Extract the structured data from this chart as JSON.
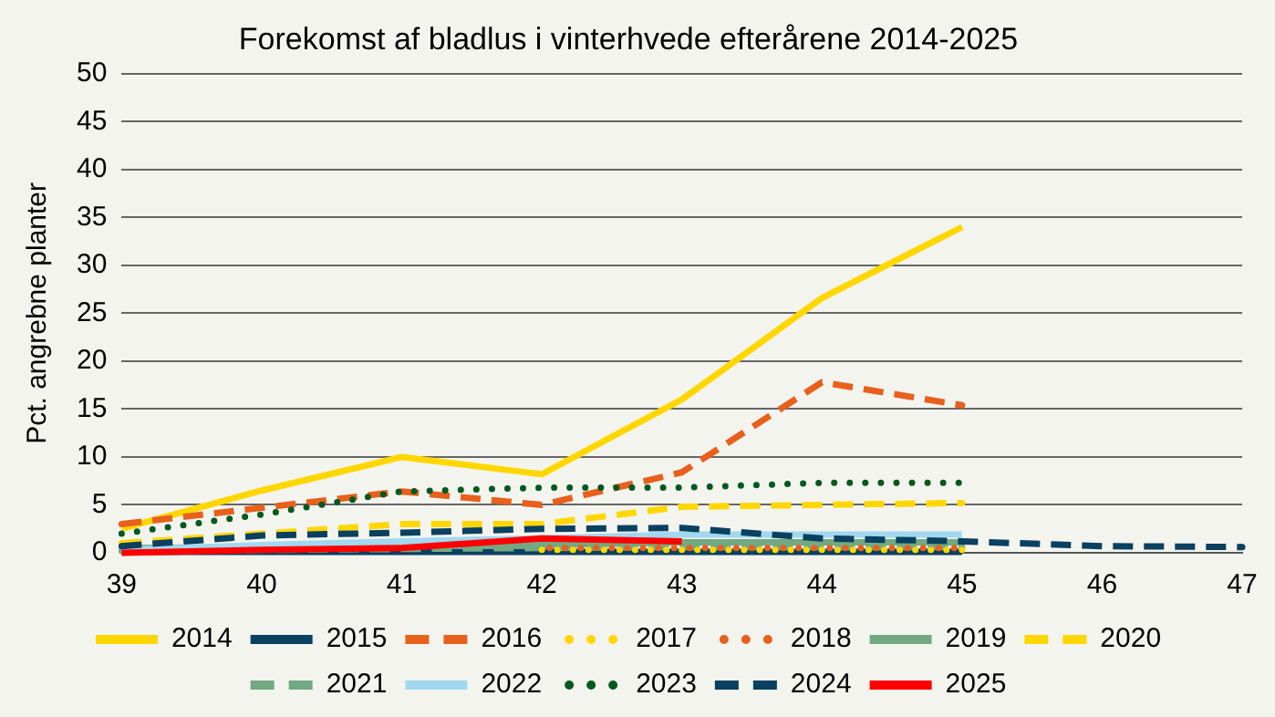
{
  "chart_data": {
    "type": "line",
    "title": "Forekomst af bladlus i vinterhvede efterårene 2014-2025",
    "ylabel": "Pct. angrebne planter",
    "categories": [
      "39",
      "40",
      "41",
      "42",
      "43",
      "44",
      "45",
      "46",
      "47"
    ],
    "ylim": [
      0,
      50
    ],
    "yticks": [
      0,
      5,
      10,
      15,
      20,
      25,
      30,
      35,
      40,
      45,
      50
    ],
    "grid": "y",
    "legend": "bottom",
    "marker": "none",
    "series": [
      {
        "name": "2014",
        "color": "#ffd700",
        "line_style": "solid",
        "values": [
          2.5,
          6.5,
          10,
          8.2,
          16,
          26.6,
          34,
          null,
          null
        ]
      },
      {
        "name": "2015",
        "color": "#0a4060",
        "line_style": "solid",
        "values": [
          0.1,
          0.1,
          0.1,
          0.1,
          0.1,
          0.1,
          0.1,
          null,
          null
        ]
      },
      {
        "name": "2016",
        "color": "#e8601c",
        "line_style": "dashed",
        "values": [
          3,
          4.7,
          6.4,
          5,
          8.4,
          17.8,
          15.4,
          null,
          null
        ]
      },
      {
        "name": "2017",
        "color": "#ffd700",
        "line_style": "dotted",
        "values": [
          null,
          null,
          null,
          0.3,
          0.3,
          0.3,
          0.3,
          null,
          null
        ]
      },
      {
        "name": "2018",
        "color": "#e8601c",
        "line_style": "dotted",
        "values": [
          null,
          null,
          null,
          0.5,
          0.5,
          0.5,
          0.5,
          null,
          null
        ]
      },
      {
        "name": "2019",
        "color": "#72a982",
        "line_style": "solid",
        "values": [
          0.5,
          0.6,
          0.7,
          0.8,
          1.1,
          1.1,
          1.1,
          null,
          null
        ]
      },
      {
        "name": "2020",
        "color": "#ffd700",
        "line_style": "dashed",
        "values": [
          1,
          2,
          3,
          3,
          4.8,
          5,
          5.2,
          null,
          null
        ]
      },
      {
        "name": "2021",
        "color": "#72a982",
        "line_style": "dashed",
        "values": [
          0.2,
          0.3,
          0.4,
          0.5,
          0.6,
          0.6,
          0.6,
          null,
          null
        ]
      },
      {
        "name": "2022",
        "color": "#a0d8f0",
        "line_style": "solid",
        "values": [
          0.3,
          0.8,
          1.2,
          1.5,
          1.9,
          1.9,
          1.9,
          null,
          null
        ]
      },
      {
        "name": "2023",
        "color": "#005a1e",
        "line_style": "dotted",
        "values": [
          2,
          4,
          6.4,
          6.8,
          6.8,
          7.3,
          7.3,
          null,
          null
        ]
      },
      {
        "name": "2024",
        "color": "#0a4060",
        "line_style": "dashed",
        "values": [
          0.7,
          1.8,
          2.1,
          2.5,
          2.6,
          1.5,
          1.2,
          0.7,
          0.6
        ]
      },
      {
        "name": "2025",
        "color": "#ff0000",
        "line_style": "solid",
        "values": [
          0,
          0.3,
          0.5,
          1.5,
          1.2,
          null,
          null,
          null,
          null
        ]
      }
    ]
  }
}
